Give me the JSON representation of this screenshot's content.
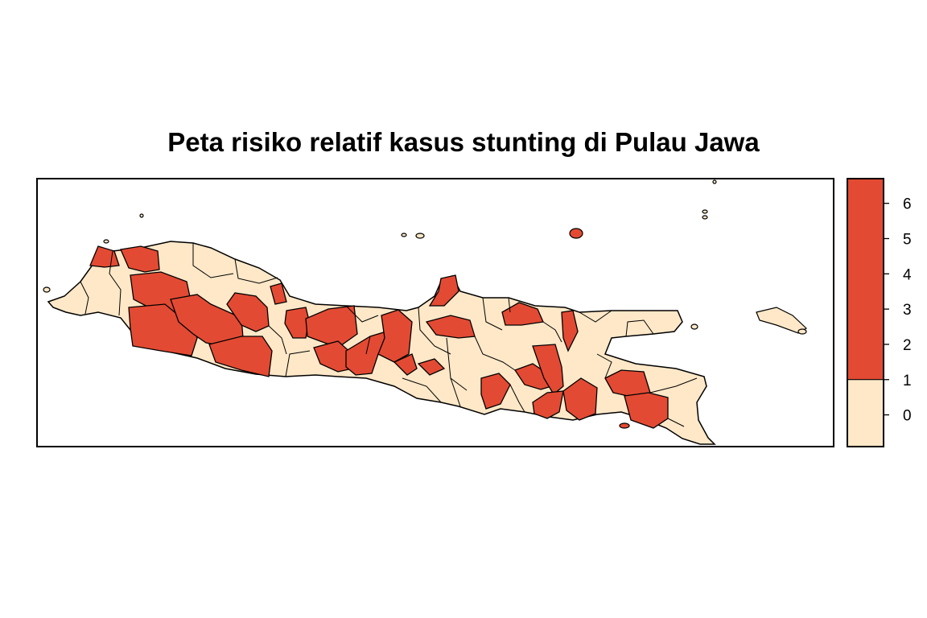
{
  "title": "Peta risiko relatif kasus stunting di Pulau Jawa",
  "colors": {
    "high": "#E34A33",
    "low": "#FEE8C8",
    "border": "#000000"
  },
  "legend": {
    "ticks": [
      "0",
      "1",
      "2",
      "3",
      "4",
      "5",
      "6"
    ],
    "break_value": 1,
    "range": [
      -0.9,
      6.7
    ]
  },
  "map": {
    "region": "Pulau Jawa",
    "high_class": "> 1",
    "low_class": "< 1"
  }
}
